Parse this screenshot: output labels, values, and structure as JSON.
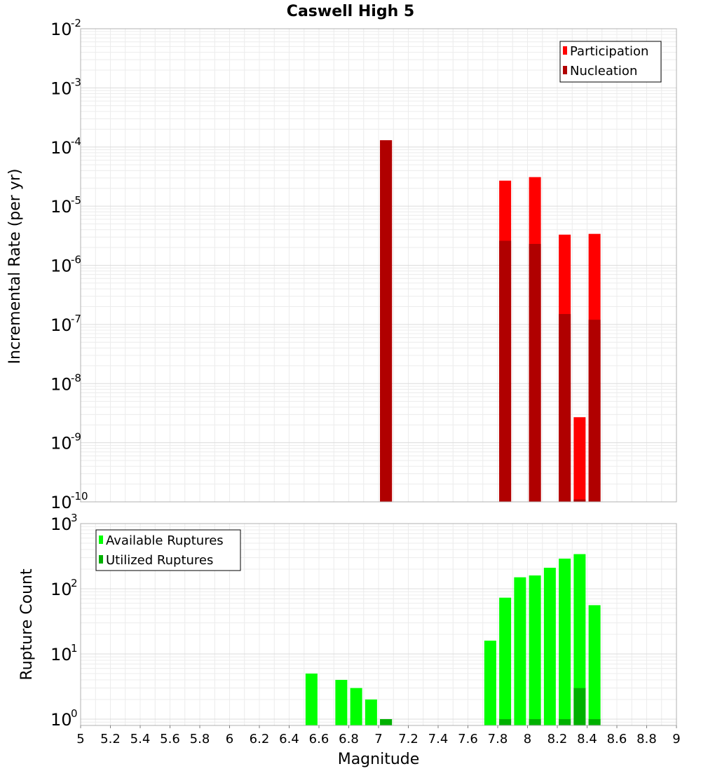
{
  "chart_data": [
    {
      "type": "bar",
      "title": "Caswell High 5",
      "xlabel": "",
      "ylabel": "Incremental Rate (per yr)",
      "yscale": "log",
      "ylim": [
        1e-10,
        0.01
      ],
      "xlim": [
        5,
        9
      ],
      "grid": true,
      "legend_position": "top-right",
      "y_tick_exponents": [
        "-10",
        "-9",
        "-8",
        "-7",
        "-6",
        "-5",
        "-4",
        "-3",
        "-2"
      ],
      "series": [
        {
          "name": "Participation",
          "color": "#ff0000",
          "x": [
            7.05,
            7.85,
            8.05,
            8.25,
            8.35,
            8.45
          ],
          "values": [
            0.00013,
            2.7e-05,
            3.1e-05,
            3.3e-06,
            2.7e-09,
            3.4e-06
          ]
        },
        {
          "name": "Nucleation",
          "color": "#b00000",
          "x": [
            7.05,
            7.85,
            8.05,
            8.25,
            8.35,
            8.45
          ],
          "values": [
            0.00013,
            2.6e-06,
            2.3e-06,
            1.5e-07,
            1.1e-10,
            1.2e-07
          ]
        }
      ]
    },
    {
      "type": "bar",
      "title": "",
      "xlabel": "Magnitude",
      "ylabel": "Rupture Count",
      "yscale": "log",
      "ylim": [
        0.8,
        1000
      ],
      "xlim": [
        5,
        9
      ],
      "grid": true,
      "legend_position": "top-left",
      "y_tick_exponents": [
        "0",
        "1",
        "2",
        "3"
      ],
      "x_ticks": [
        "5",
        "5.2",
        "5.4",
        "5.6",
        "5.8",
        "6",
        "6.2",
        "6.4",
        "6.6",
        "6.8",
        "7",
        "7.2",
        "7.4",
        "7.6",
        "7.8",
        "8",
        "8.2",
        "8.4",
        "8.6",
        "8.8",
        "9"
      ],
      "series": [
        {
          "name": "Available Ruptures",
          "color": "#00ff00",
          "x": [
            6.55,
            6.75,
            6.85,
            6.95,
            7.05,
            7.75,
            7.85,
            7.95,
            8.05,
            8.15,
            8.25,
            8.35,
            8.45
          ],
          "values": [
            5,
            4,
            3,
            2,
            1,
            16,
            73,
            150,
            160,
            210,
            290,
            340,
            56
          ]
        },
        {
          "name": "Utilized Ruptures",
          "color": "#00b000",
          "x": [
            7.05,
            7.85,
            8.05,
            8.25,
            8.35,
            8.45
          ],
          "values": [
            1,
            1,
            1,
            1,
            3,
            1
          ]
        }
      ]
    }
  ]
}
